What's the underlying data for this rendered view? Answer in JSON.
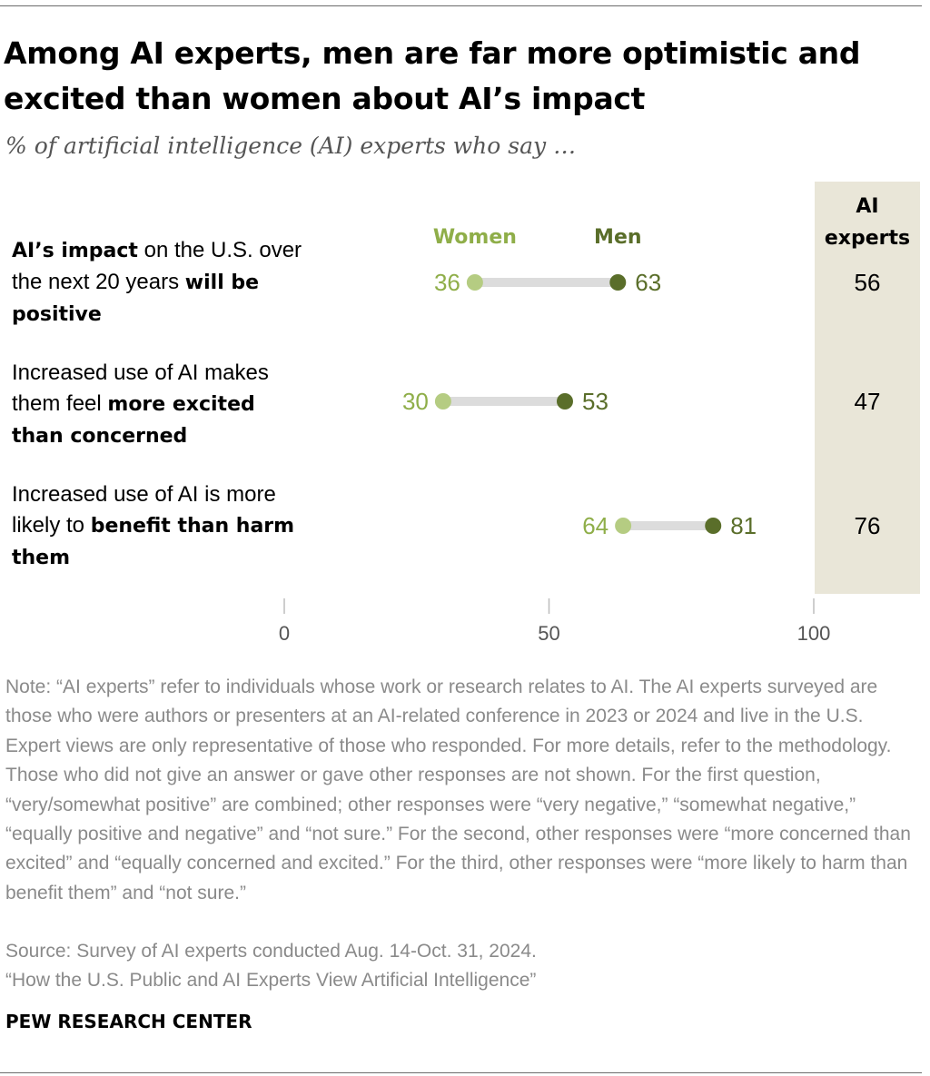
{
  "title": "Among AI experts, men are far more optimistic and excited than women about AI’s impact",
  "subtitle": "% of artificial intelligence (AI) experts who say …",
  "colors": {
    "women": "#b5cc82",
    "women_text": "#8fae49",
    "men": "#5a6e2a",
    "column_bg": "#e9e6d8",
    "connector": "#dcdcdc",
    "axis_text": "#555555",
    "note_text": "#8a8a8a"
  },
  "rows": [
    {
      "parts": [
        {
          "t": "AI’s impact",
          "b": true
        },
        {
          "t": " on the U.S. over the next 20 years ",
          "b": false
        },
        {
          "t": "will be positive",
          "b": true
        }
      ]
    },
    {
      "parts": [
        {
          "t": "Increased use of AI makes them feel ",
          "b": false
        },
        {
          "t": "more excited than concerned",
          "b": true
        }
      ]
    },
    {
      "parts": [
        {
          "t": "Increased use of AI is more likely to ",
          "b": false
        },
        {
          "t": "benefit than harm them",
          "b": true
        }
      ]
    }
  ],
  "chart_data": {
    "type": "dot",
    "title": "Among AI experts, men are far more optimistic and excited than women about AI’s impact",
    "subtitle": "% of artificial intelligence (AI) experts who say …",
    "categories": [
      "AI’s impact on the U.S. over the next 20 years will be positive",
      "Increased use of AI makes them feel more excited than concerned",
      "Increased use of AI is more likely to benefit than harm them"
    ],
    "series": [
      {
        "name": "Women",
        "values": [
          36,
          30,
          64
        ]
      },
      {
        "name": "Men",
        "values": [
          63,
          53,
          81
        ]
      }
    ],
    "extra_column": {
      "header": "AI experts",
      "values": [
        56,
        47,
        76
      ]
    },
    "xlim": [
      0,
      100
    ],
    "xticks": [
      0,
      50,
      100
    ],
    "grid": false,
    "legend": "top"
  },
  "note": "Note: “AI experts” refer to individuals whose work or research relates to AI. The AI experts surveyed are those who were authors or presenters at an AI-related conference in 2023 or 2024 and live in the U.S. Expert views are only representative of those who responded. For more details, refer to the methodology. Those who did not give an answer or gave other responses are not shown. For the first question, “very/somewhat positive” are combined; other responses were “very negative,” “somewhat negative,” “equally positive and negative” and “not sure.” For the second, other responses were “more concerned than excited” and “equally concerned and excited.” For the third, other responses were “more likely to harm than benefit them” and “not sure.”",
  "source": "Source: Survey of AI experts conducted Aug. 14-Oct. 31, 2024.",
  "report": "“How the U.S. Public and AI Experts View Artificial Intelligence”",
  "footer": "PEW RESEARCH CENTER"
}
